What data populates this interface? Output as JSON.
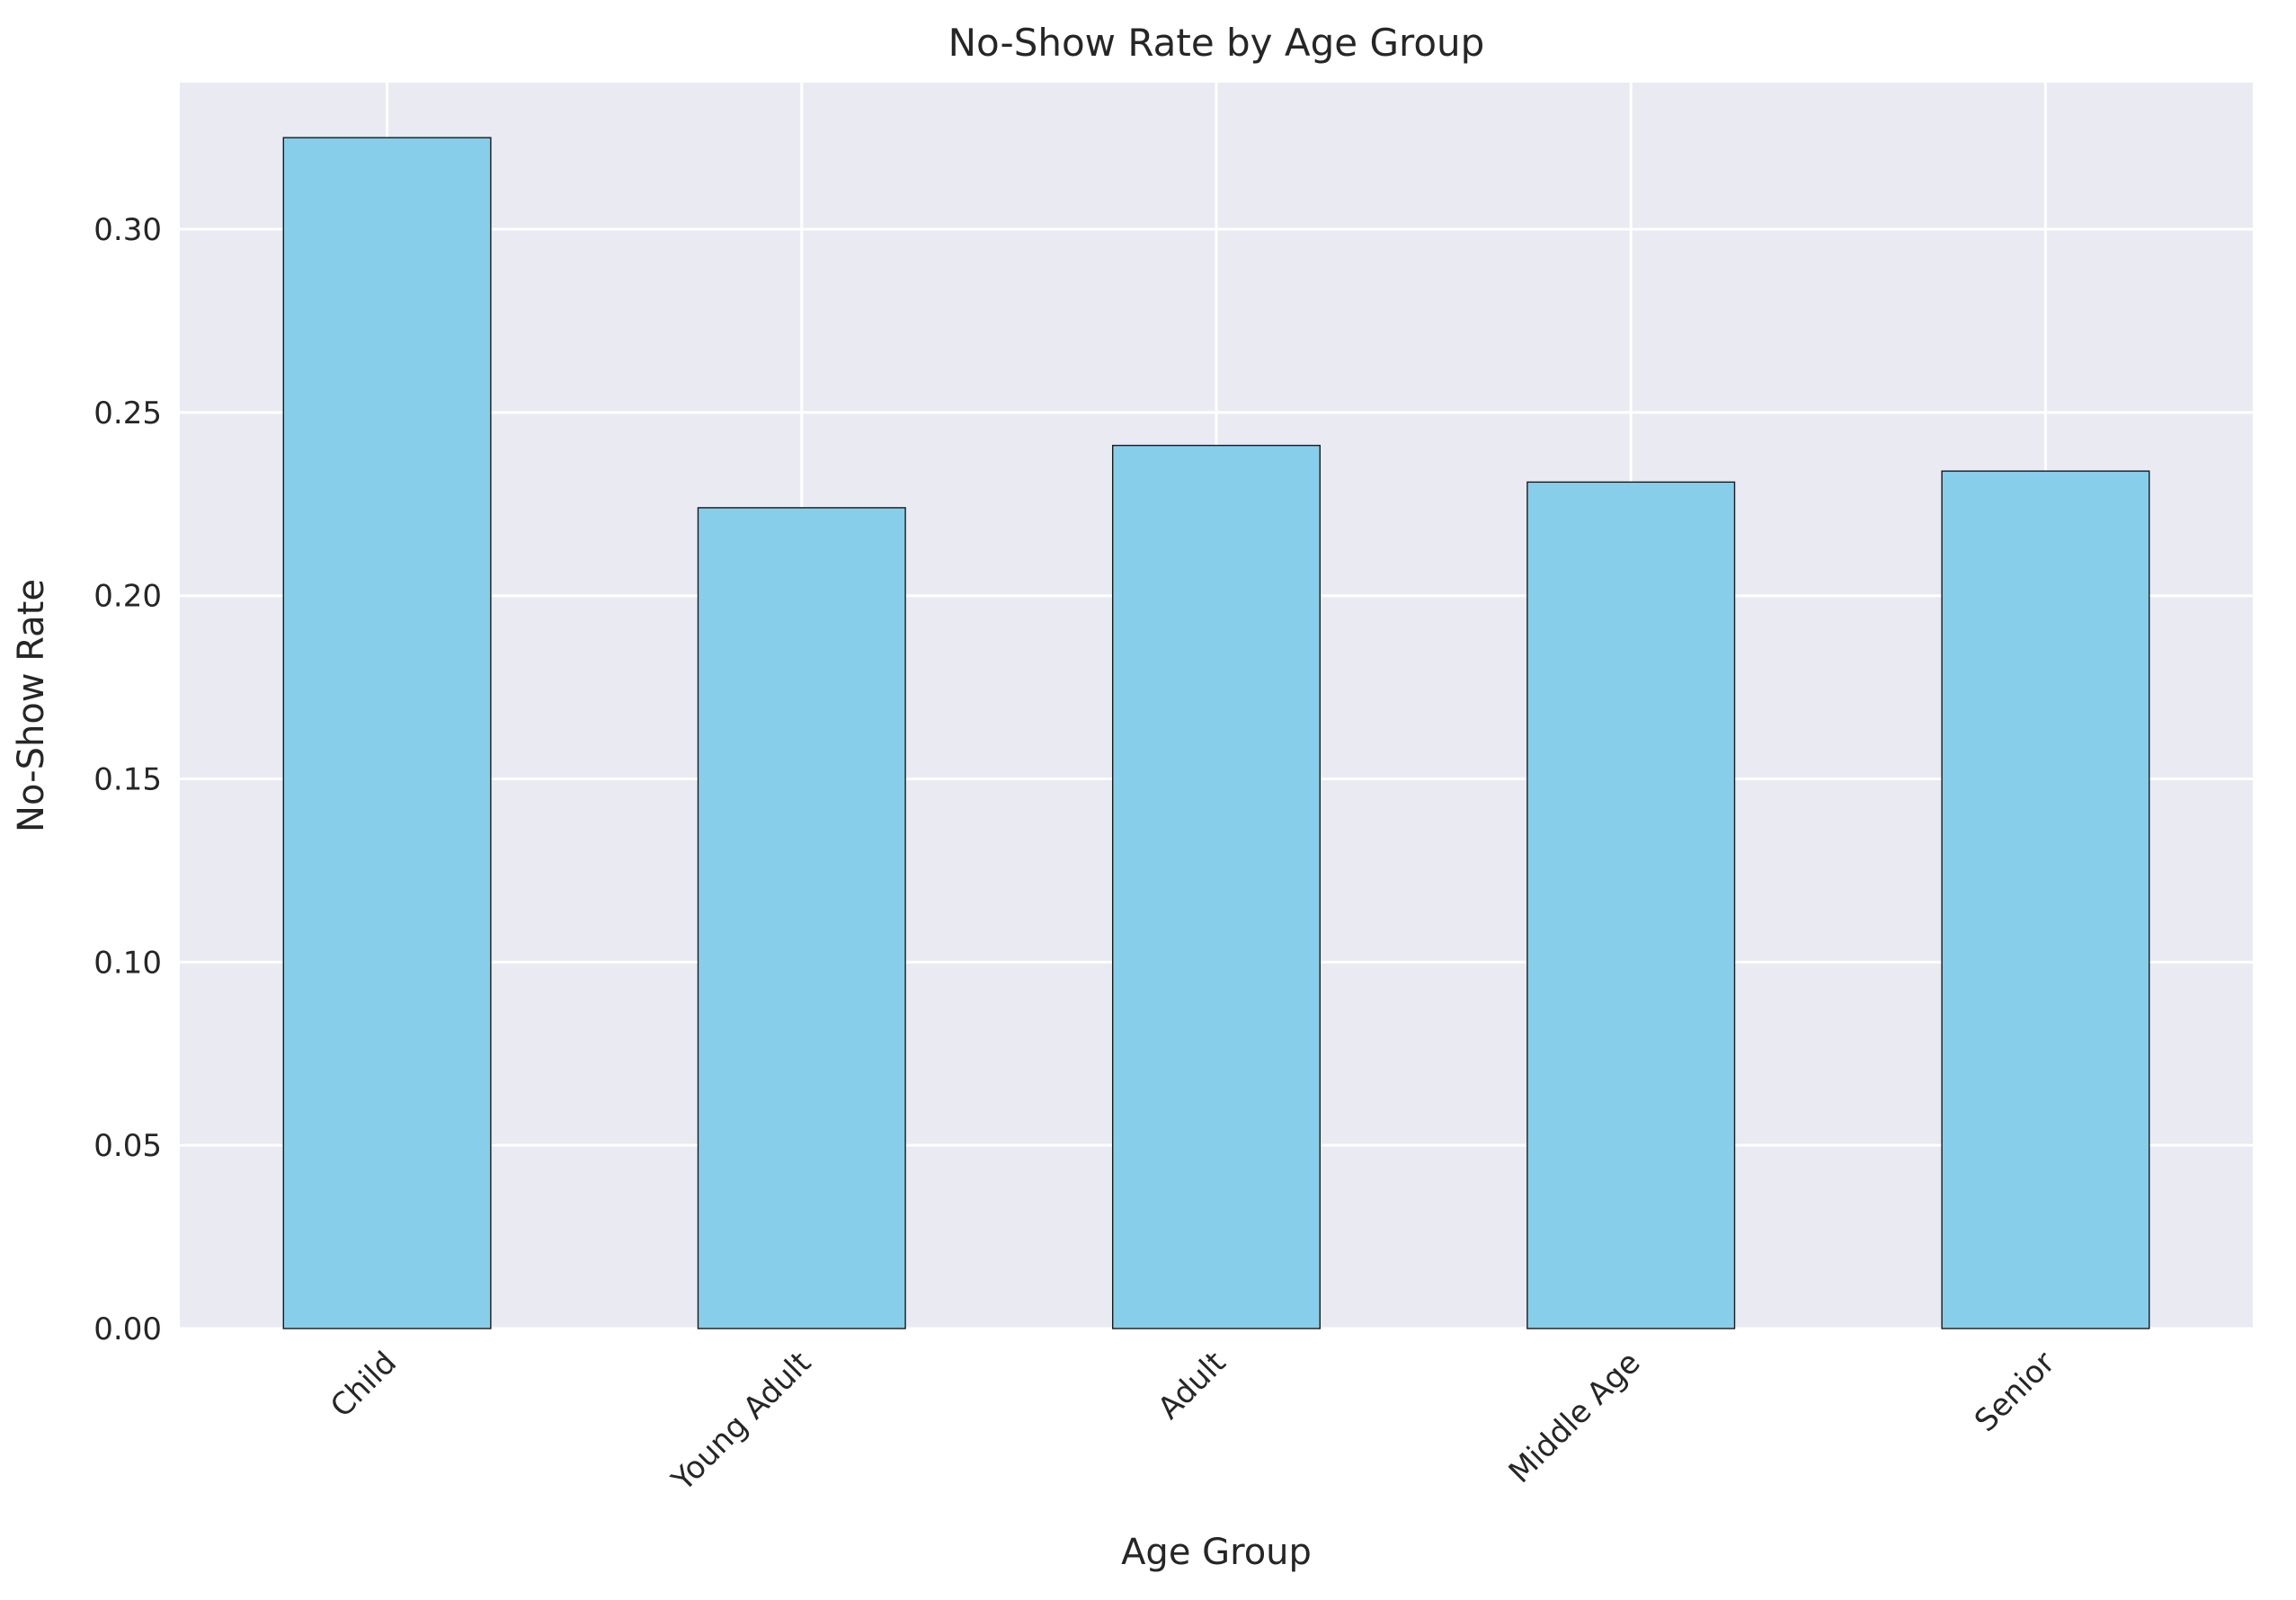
{
  "chart_data": {
    "type": "bar",
    "title": "No-Show Rate by Age Group",
    "xlabel": "Age Group",
    "ylabel": "No-Show Rate",
    "categories": [
      "Child",
      "Young Adult",
      "Adult",
      "Middle Age",
      "Senior"
    ],
    "values": [
      0.325,
      0.224,
      0.241,
      0.231,
      0.234
    ],
    "ylim": [
      0,
      0.34
    ],
    "yticks": [
      0.0,
      0.05,
      0.1,
      0.15,
      0.2,
      0.25,
      0.3
    ],
    "ytick_labels": [
      "0.00",
      "0.05",
      "0.10",
      "0.15",
      "0.20",
      "0.25",
      "0.30"
    ],
    "grid": true,
    "x_tick_rotation": 45,
    "colors": {
      "bar": "#87ceeb",
      "bar_edge": "#1a1a1a",
      "plot_background": "#eaeaf2",
      "grid": "#ffffff",
      "text": "#262626"
    }
  }
}
